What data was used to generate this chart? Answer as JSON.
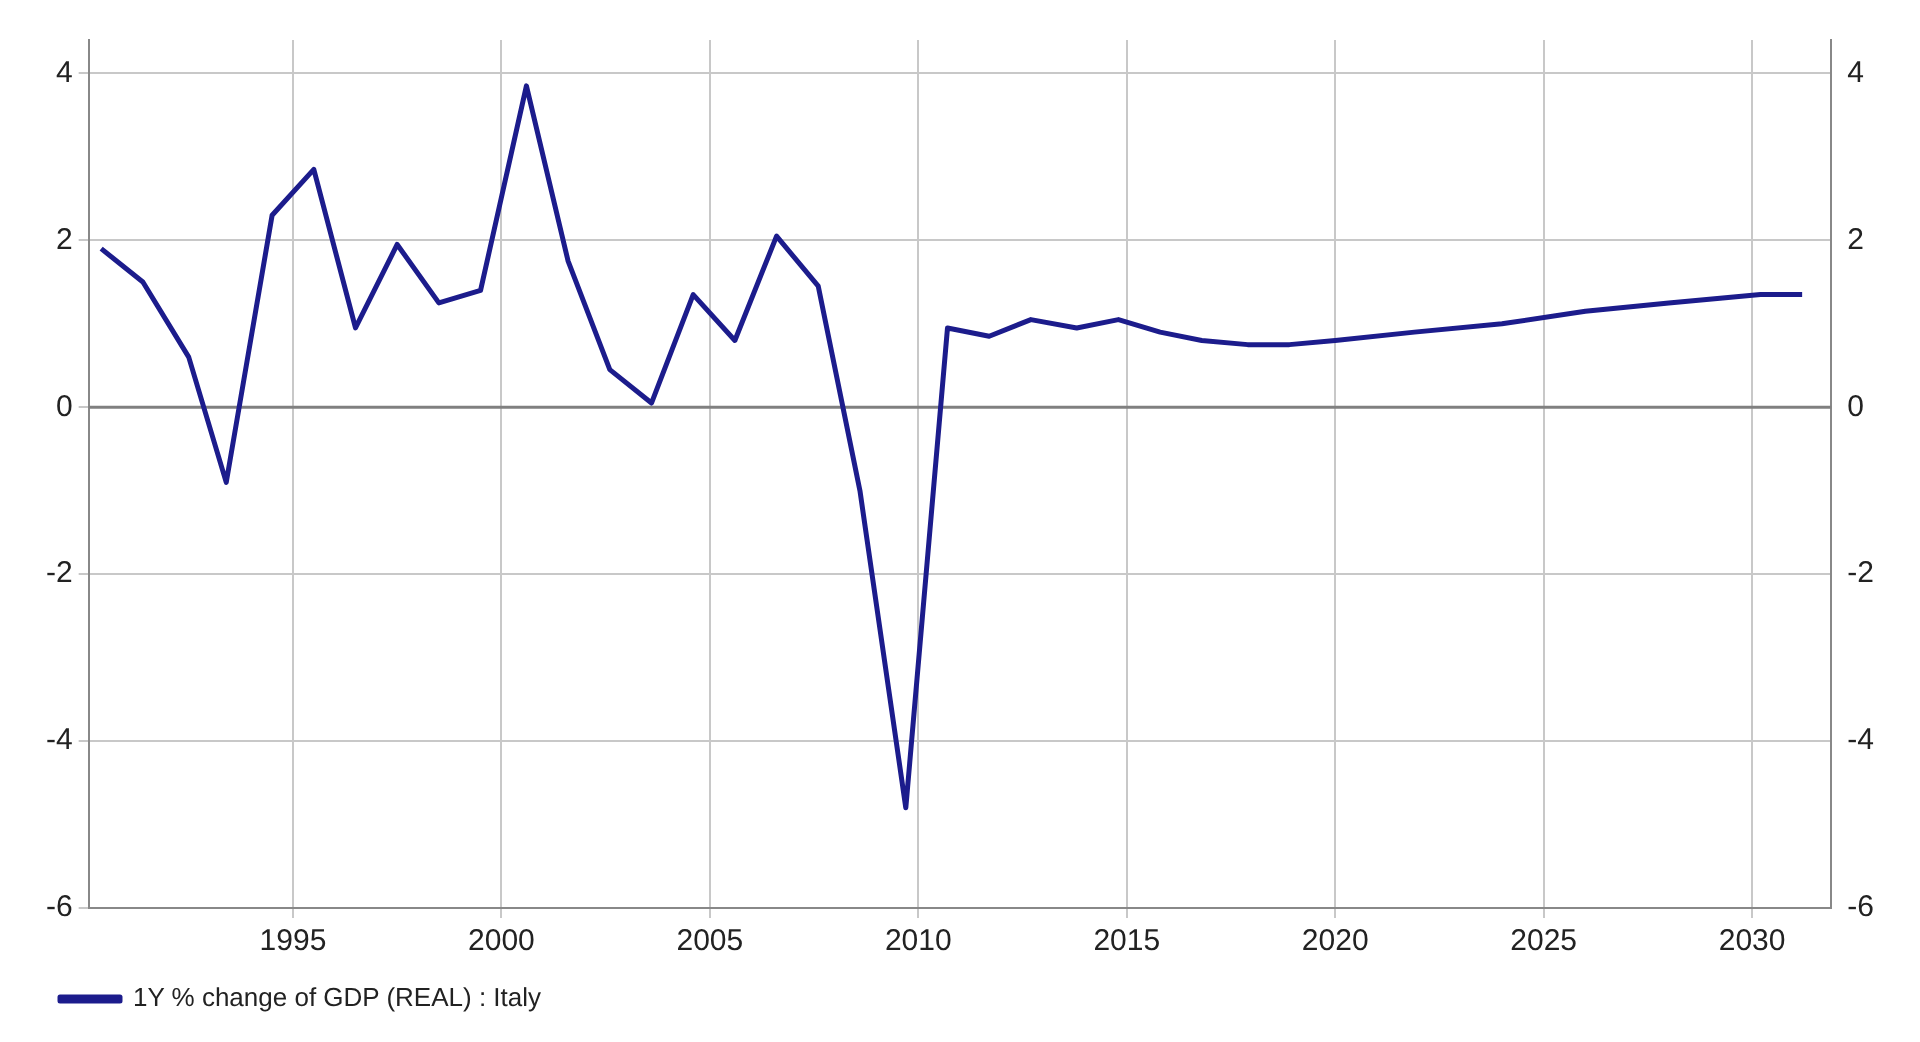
{
  "chart_data": {
    "type": "line",
    "x": [
      1990.4,
      1991.4,
      1992.5,
      1993.4,
      1994.5,
      1995.5,
      1996.5,
      1997.5,
      1998.5,
      1999.5,
      2000.6,
      2001.6,
      2002.6,
      2003.6,
      2004.6,
      2005.6,
      2006.6,
      2007.6,
      2008.6,
      2009.7,
      2010.7,
      2011.7,
      2012.7,
      2013.8,
      2014.8,
      2015.8,
      2016.8,
      2017.9,
      2018.9,
      2020,
      2021.9,
      2024,
      2026,
      2028,
      2030.2,
      2031.2
    ],
    "series": [
      {
        "name": "1Y % change of GDP (REAL) : Italy",
        "color": "#1c1c8c",
        "values": [
          1.9,
          1.5,
          0.6,
          -0.9,
          2.3,
          2.85,
          0.95,
          1.95,
          1.25,
          1.4,
          3.85,
          1.75,
          0.45,
          0.05,
          1.35,
          0.8,
          2.05,
          1.45,
          -1.0,
          -4.8,
          0.95,
          0.85,
          1.05,
          0.95,
          1.05,
          0.9,
          0.8,
          0.75,
          0.75,
          0.8,
          0.9,
          1.0,
          1.15,
          1.25,
          1.35,
          1.35
        ]
      }
    ],
    "xlim": [
      1990.1,
      2031.9
    ],
    "xticks": [
      1995,
      2000,
      2005,
      2010,
      2015,
      2020,
      2025,
      2030
    ],
    "ylim": [
      -6,
      4.4
    ],
    "yticks": [
      -6,
      -4,
      -2,
      0,
      2,
      4
    ],
    "y2lim": [
      -6,
      4.4
    ],
    "y2ticks": [
      -6,
      -4,
      -2,
      0,
      2,
      4
    ],
    "ref_lines": [
      {
        "axis": "y",
        "value": 0,
        "color": "#808080"
      }
    ],
    "grid": true,
    "legend": "bottom left",
    "marker": "none",
    "line_style": "solid"
  }
}
